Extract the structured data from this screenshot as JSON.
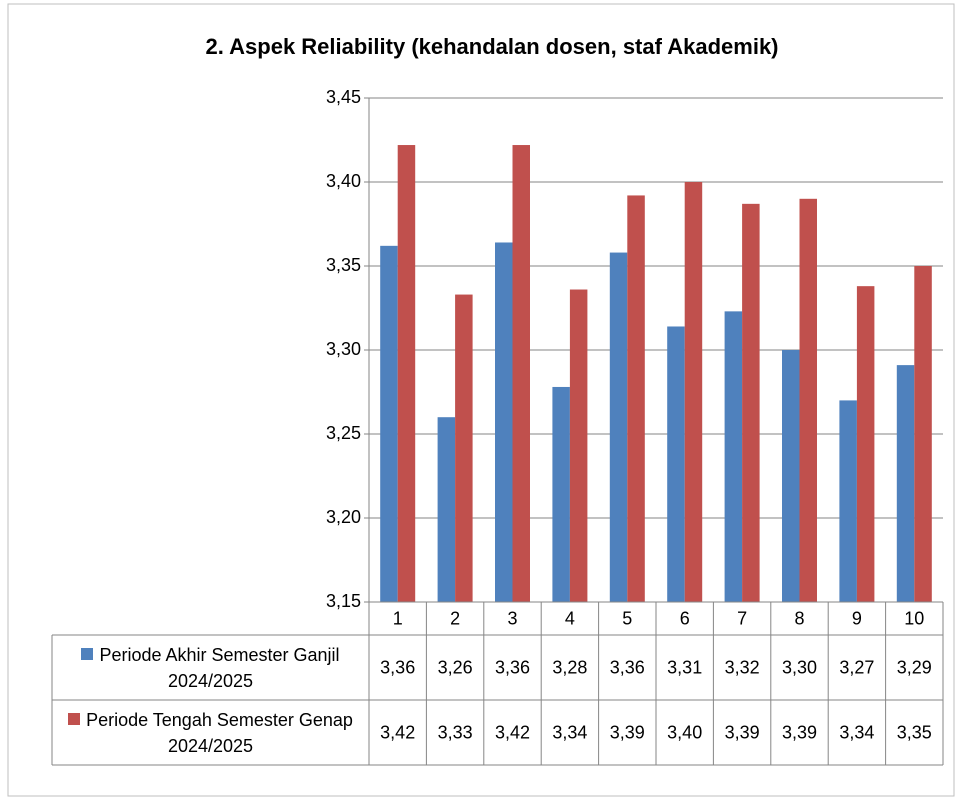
{
  "chart_data": {
    "type": "bar",
    "title": "2. Aspek Reliability (kehandalan dosen, staf Akademik)",
    "categories": [
      "1",
      "2",
      "3",
      "4",
      "5",
      "6",
      "7",
      "8",
      "9",
      "10"
    ],
    "series": [
      {
        "name": "Periode Akhir Semester Ganjil 2024/2025",
        "color": "#4f81bd",
        "values": [
          3.362,
          3.26,
          3.364,
          3.278,
          3.358,
          3.314,
          3.323,
          3.3,
          3.27,
          3.291
        ],
        "value_labels": [
          "3,36",
          "3,26",
          "3,36",
          "3,28",
          "3,36",
          "3,31",
          "3,32",
          "3,30",
          "3,27",
          "3,29"
        ]
      },
      {
        "name": "Periode Tengah Semester Genap 2024/2025",
        "color": "#c0504d",
        "values": [
          3.422,
          3.333,
          3.422,
          3.336,
          3.392,
          3.4,
          3.387,
          3.39,
          3.338,
          3.35
        ],
        "value_labels": [
          "3,42",
          "3,33",
          "3,42",
          "3,34",
          "3,39",
          "3,40",
          "3,39",
          "3,39",
          "3,34",
          "3,35"
        ]
      }
    ],
    "ylim": [
      3.15,
      3.45
    ],
    "yticks": [
      {
        "value": 3.15,
        "label": "3,15"
      },
      {
        "value": 3.2,
        "label": "3,20"
      },
      {
        "value": 3.25,
        "label": "3,25"
      },
      {
        "value": 3.3,
        "label": "3,30"
      },
      {
        "value": 3.35,
        "label": "3,35"
      },
      {
        "value": 3.4,
        "label": "3,40"
      },
      {
        "value": 3.45,
        "label": "3,45"
      }
    ],
    "grid": true
  }
}
